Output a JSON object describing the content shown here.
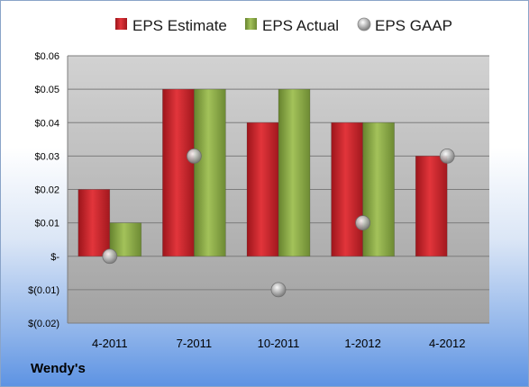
{
  "chart_data": {
    "type": "bar",
    "title": "",
    "xlabel": "",
    "ylabel": "",
    "categories": [
      "4-2011",
      "7-2011",
      "10-2011",
      "1-2012",
      "4-2012"
    ],
    "series": [
      {
        "name": "EPS Estimate",
        "type": "bar",
        "color": "#c8222a",
        "values": [
          0.02,
          0.05,
          0.04,
          0.04,
          0.03
        ]
      },
      {
        "name": "EPS Actual",
        "type": "bar",
        "color": "#86a442",
        "values": [
          0.01,
          0.05,
          0.05,
          0.04,
          null
        ]
      },
      {
        "name": "EPS GAAP",
        "type": "scatter",
        "color": "#9a9a9a",
        "values": [
          0.0,
          0.03,
          -0.01,
          0.01,
          0.03
        ]
      }
    ],
    "ylim": [
      -0.02,
      0.06
    ],
    "yticks": [
      {
        "value": 0.06,
        "label": "$0.06"
      },
      {
        "value": 0.05,
        "label": "$0.05"
      },
      {
        "value": 0.04,
        "label": "$0.04"
      },
      {
        "value": 0.03,
        "label": "$0.03"
      },
      {
        "value": 0.02,
        "label": "$0.02"
      },
      {
        "value": 0.01,
        "label": "$0.01"
      },
      {
        "value": 0.0,
        "label": "$-"
      },
      {
        "value": -0.01,
        "label": "$(0.01)"
      },
      {
        "value": -0.02,
        "label": "$(0.02)"
      }
    ],
    "grid": true,
    "legend_position": "top"
  },
  "footer": {
    "company": "Wendy's"
  }
}
